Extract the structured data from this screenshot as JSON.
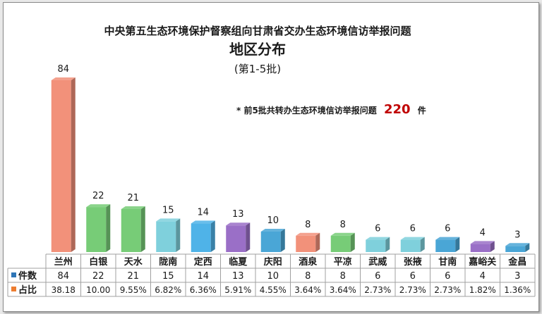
{
  "chart_data": {
    "type": "bar",
    "title": "中央第五生态环境保护督察组向甘肃省交办生态环境信访举报问题",
    "subtitle": "地区分布",
    "subtitle2": "(第1-5批)",
    "note": {
      "prefix": "* 前5批共转办生态环境信访举报问题",
      "total": "220",
      "unit": "件"
    },
    "categories": [
      "兰州",
      "白银",
      "天水",
      "陇南",
      "定西",
      "临夏",
      "庆阳",
      "酒泉",
      "平凉",
      "武威",
      "张掖",
      "甘南",
      "嘉峪关",
      "金昌"
    ],
    "series": [
      {
        "name": "件数",
        "values": [
          84,
          22,
          21,
          15,
          14,
          13,
          10,
          8,
          8,
          6,
          6,
          6,
          4,
          3
        ],
        "labels": [
          "84",
          "22",
          "21",
          "15",
          "14",
          "13",
          "10",
          "8",
          "8",
          "6",
          "6",
          "6",
          "4",
          "3"
        ]
      },
      {
        "name": "占比",
        "values": [
          "38.18",
          "10.00",
          "9.55%",
          "6.82%",
          "6.36%",
          "5.91%",
          "4.55%",
          "3.64%",
          "3.64%",
          "2.73%",
          "2.73%",
          "2.73%",
          "1.82%",
          "1.36%"
        ]
      }
    ],
    "colors": [
      "#f2917a",
      "#77cc77",
      "#77cc77",
      "#7fd0dc",
      "#4fb3e8",
      "#9a6fc7",
      "#4aa6d6",
      "#f2917a",
      "#77cc77",
      "#7fd0dc",
      "#7fd0dc",
      "#4aa6d6",
      "#9a6fc7",
      "#4aa6d6"
    ],
    "series_colors": [
      "#2e75b6",
      "#ed7d31"
    ],
    "accent": "#c00000",
    "ylim": [
      0,
      84
    ],
    "grid": false,
    "legend": "in-table"
  }
}
